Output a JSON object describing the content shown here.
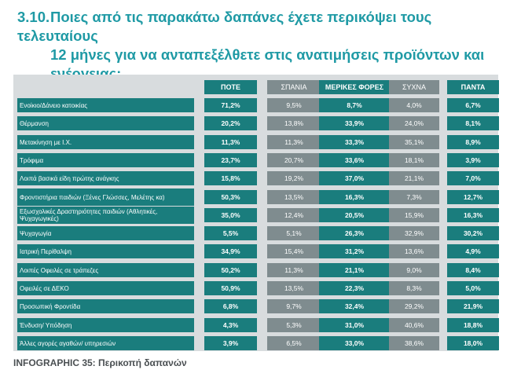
{
  "header": {
    "number": "3.10.",
    "line1": "Ποιες από τις παρακάτω δαπάνες έχετε περικόψει τους τελευταίους",
    "line2": "12 μήνες για να ανταπεξέλθετε στις ανατιμήσεις προϊόντων και",
    "line3": "ενέργειας;"
  },
  "caption": "INFOGRAPHIC 35: Περικοπή δαπανών",
  "colors": {
    "title": "#1f9aa5",
    "accent": "#1a7d7d",
    "muted": "#7f8c8f",
    "panel": "#d8dcde"
  },
  "chart_data": {
    "type": "table",
    "columns": [
      "ΠΟΤΕ",
      "ΣΠΑΝΙΑ",
      "ΜΕΡΙΚΕΣ ΦΟΡΕΣ",
      "ΣΥΧΝΑ",
      "ΠΑΝΤΑ"
    ],
    "highlighted_columns": [
      "ΠΟΤΕ",
      "ΜΕΡΙΚΕΣ ΦΟΡΕΣ",
      "ΠΑΝΤΑ"
    ],
    "rows": [
      {
        "label": "Ενοίκιο/Δάνειο κατοικίας",
        "values": [
          "71,2%",
          "9,5%",
          "8,7%",
          "4,0%",
          "6,7%"
        ]
      },
      {
        "label": "Θέρμανση",
        "values": [
          "20,2%",
          "13,8%",
          "33,9%",
          "24,0%",
          "8,1%"
        ]
      },
      {
        "label": "Μετακίνηση με Ι.Χ.",
        "values": [
          "11,3%",
          "11,3%",
          "33,3%",
          "35,1%",
          "8,9%"
        ]
      },
      {
        "label": "Τρόφιμα",
        "values": [
          "23,7%",
          "20,7%",
          "33,6%",
          "18,1%",
          "3,9%"
        ]
      },
      {
        "label": "Λοιπά βασικά είδη πρώτης ανάγκης",
        "values": [
          "15,8%",
          "19,2%",
          "37,0%",
          "21,1%",
          "7,0%"
        ]
      },
      {
        "label": "Φροντιστήρια παιδιών (Ξένες Γλώσσες, Μελέτης κα)",
        "values": [
          "50,3%",
          "13,5%",
          "16,3%",
          "7,3%",
          "12,7%"
        ]
      },
      {
        "label": "Εξωσχολικές Δραστηριότητες παιδιών (Αθλητικές, Ψυχαγωγικές)",
        "values": [
          "35,0%",
          "12,4%",
          "20,5%",
          "15,9%",
          "16,3%"
        ]
      },
      {
        "label": "Ψυχαγωγία",
        "values": [
          "5,5%",
          "5,1%",
          "26,3%",
          "32,9%",
          "30,2%"
        ]
      },
      {
        "label": "Ιατρική Περίθαλψη",
        "values": [
          "34,9%",
          "15,4%",
          "31,2%",
          "13,6%",
          "4,9%"
        ]
      },
      {
        "label": "Λοιπές Οφειλές σε τράπεζες",
        "values": [
          "50,2%",
          "11,3%",
          "21,1%",
          "9,0%",
          "8,4%"
        ]
      },
      {
        "label": "Οφειλές σε ΔΕΚΟ",
        "values": [
          "50,9%",
          "13,5%",
          "22,3%",
          "8,3%",
          "5,0%"
        ]
      },
      {
        "label": "Προσωπική Φροντίδα",
        "values": [
          "6,8%",
          "9,7%",
          "32,4%",
          "29,2%",
          "21,9%"
        ]
      },
      {
        "label": "Ένδυση/ Υπόδηση",
        "values": [
          "4,3%",
          "5,3%",
          "31,0%",
          "40,6%",
          "18,8%"
        ]
      },
      {
        "label": "Άλλες αγορές αγαθών/ υπηρεσιών",
        "values": [
          "3,9%",
          "6,5%",
          "33,0%",
          "38,6%",
          "18,0%"
        ]
      }
    ]
  }
}
